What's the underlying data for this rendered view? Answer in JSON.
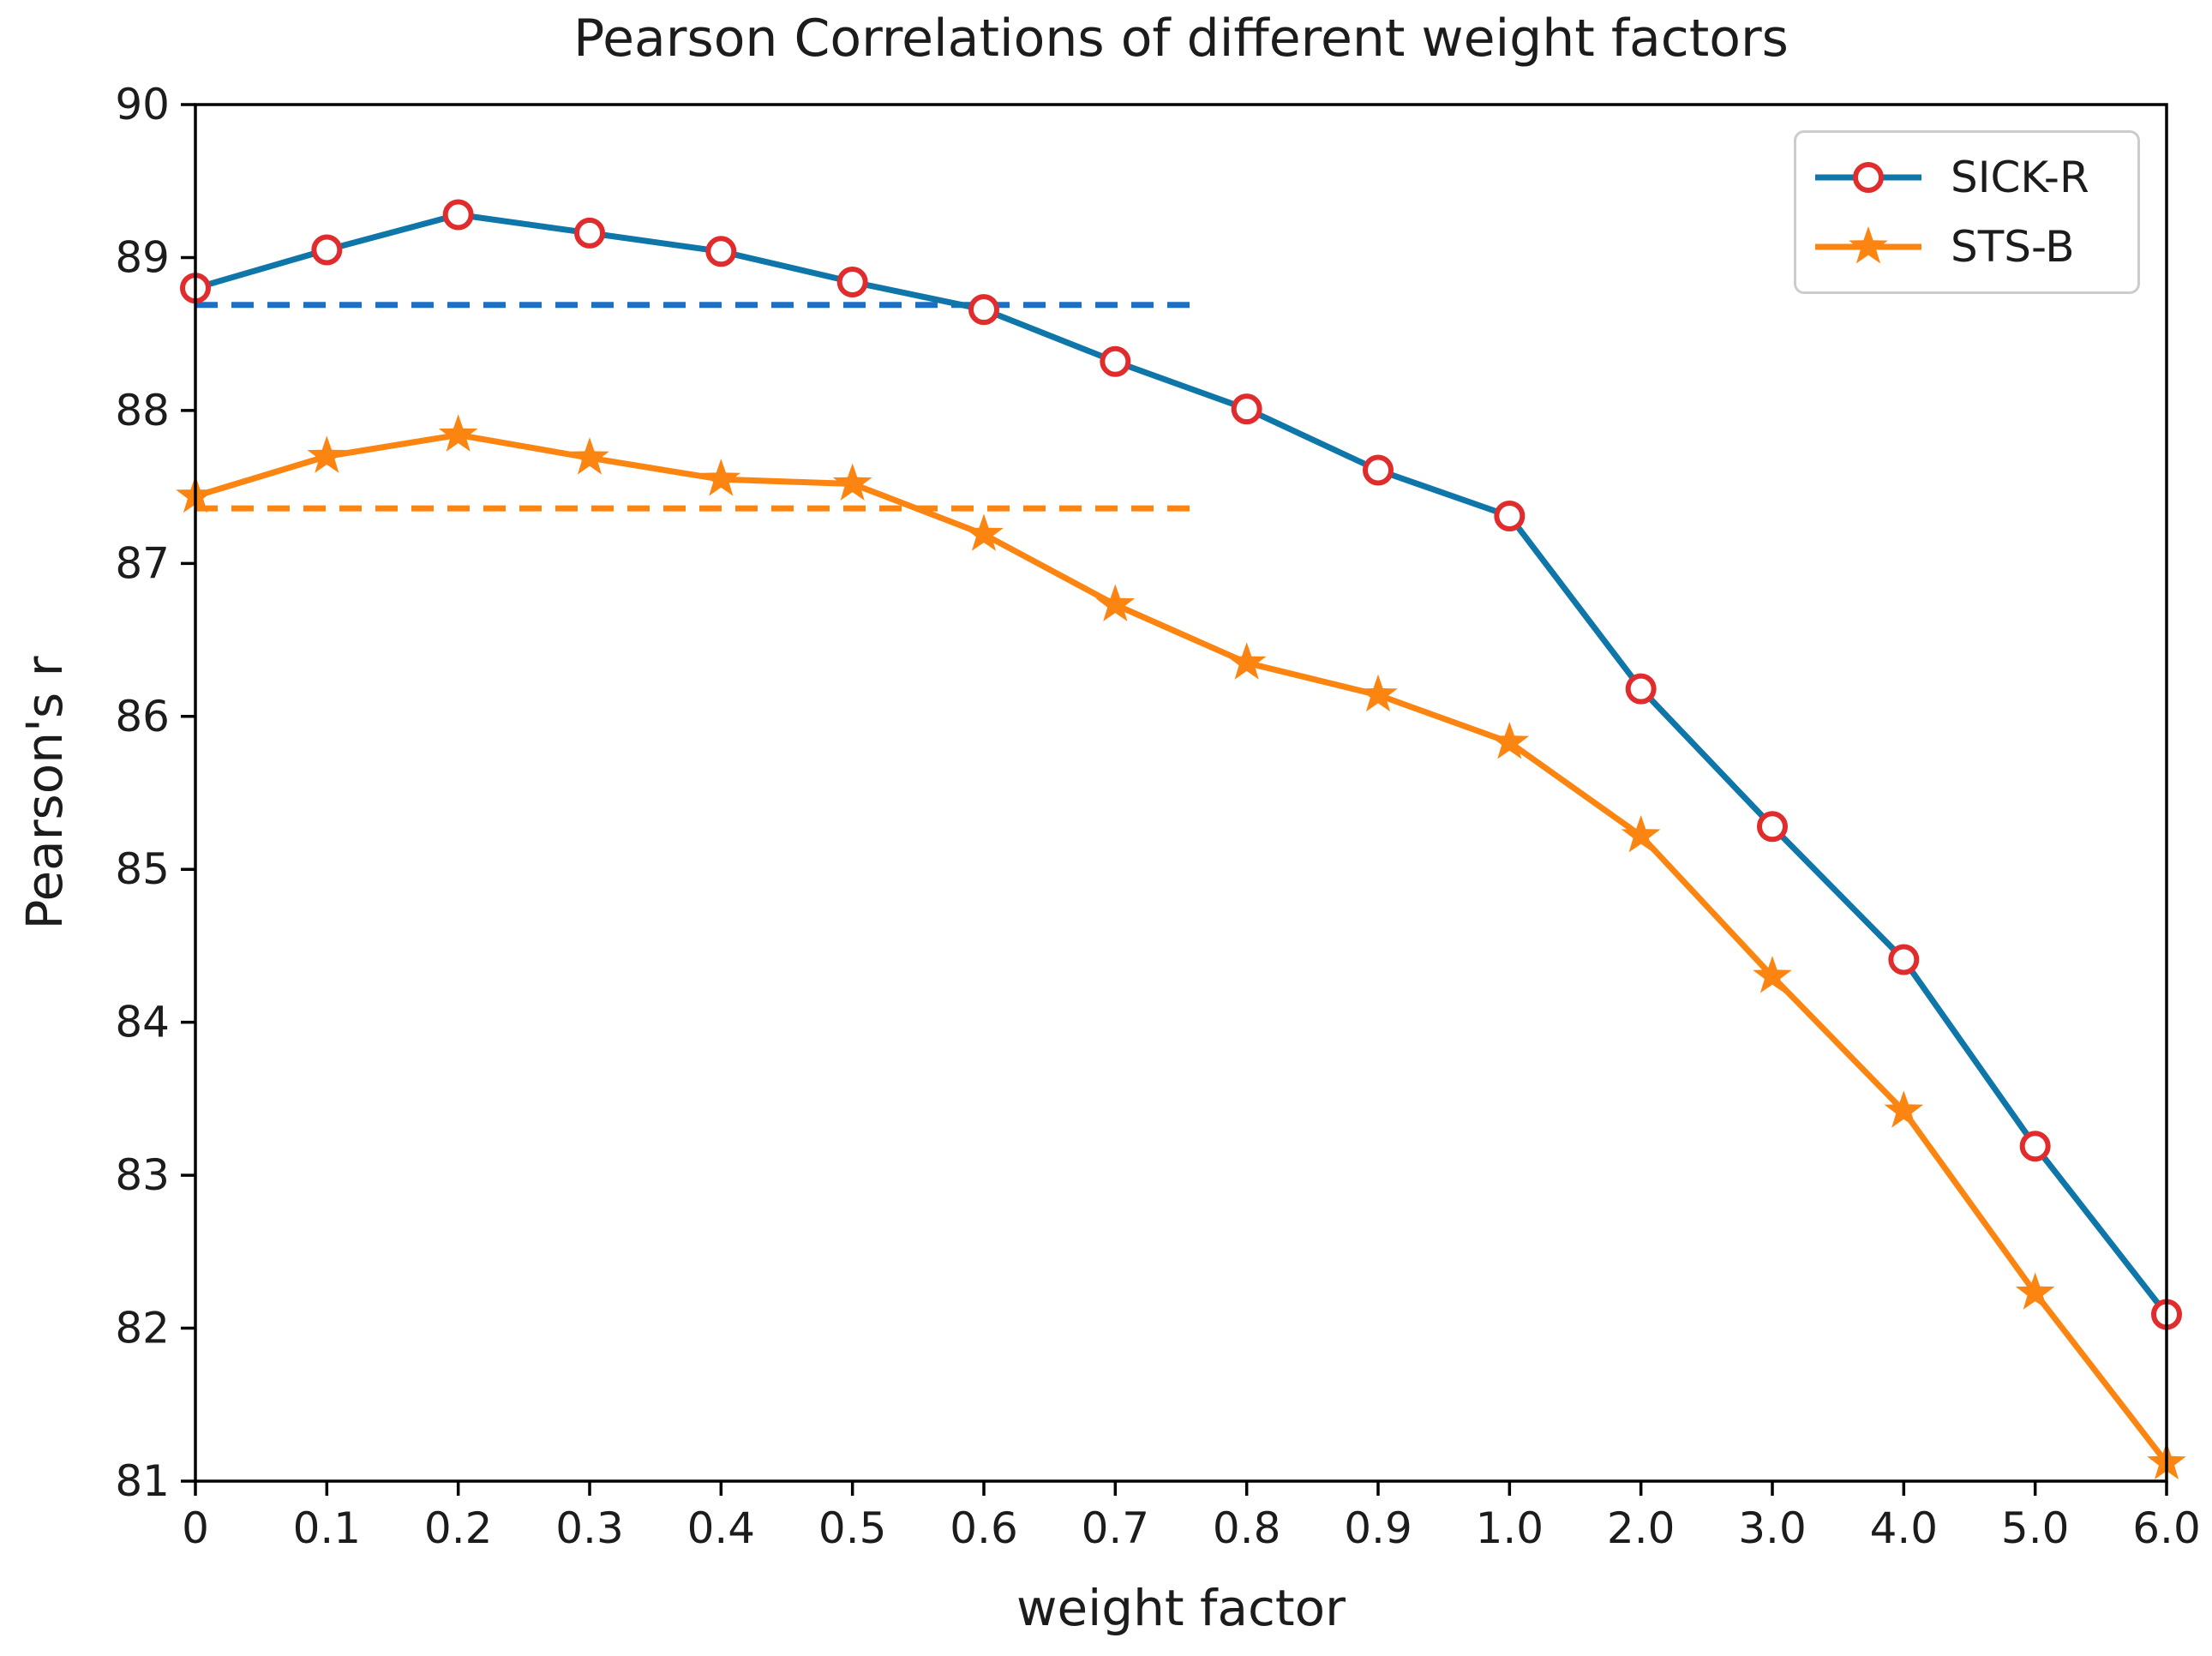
{
  "chart_data": {
    "type": "line",
    "title": "Pearson Correlations of different weight factors",
    "xlabel": "weight factor",
    "ylabel": "Pearson's r",
    "categories": [
      "0",
      "0.1",
      "0.2",
      "0.3",
      "0.4",
      "0.5",
      "0.6",
      "0.7",
      "0.8",
      "0.9",
      "1.0",
      "2.0",
      "3.0",
      "4.0",
      "5.0",
      "6.0"
    ],
    "ylim": [
      81,
      90
    ],
    "yticks": [
      90,
      89,
      88,
      87,
      86,
      85,
      84,
      83,
      82,
      81
    ],
    "grid": false,
    "legend_position": "upper right",
    "series": [
      {
        "name": "SICK-R",
        "line_color": "#0f76aa",
        "line_style": "solid",
        "marker": "open-circle",
        "marker_edge_color": "#e02c2c",
        "marker_fill": "#ffffff",
        "values": [
          88.8,
          89.05,
          89.28,
          89.16,
          89.04,
          88.84,
          88.66,
          88.32,
          88.01,
          87.61,
          87.31,
          86.18,
          85.28,
          84.41,
          83.19,
          82.09
        ]
      },
      {
        "name": "STS-B",
        "line_color": "#fb8510",
        "line_style": "solid",
        "marker": "star",
        "marker_fill": "#fb8510",
        "values": [
          87.44,
          87.7,
          87.84,
          87.69,
          87.55,
          87.52,
          87.19,
          86.73,
          86.35,
          86.14,
          85.83,
          85.22,
          84.3,
          83.42,
          82.23,
          81.12
        ]
      }
    ],
    "baselines": [
      {
        "label": "SICK-R baseline",
        "value": 88.69,
        "color": "#1b6fc4",
        "line_style": "dashed",
        "x_start_fraction": 0,
        "x_end_fraction": 0.51
      },
      {
        "label": "STS-B baseline",
        "value": 87.36,
        "color": "#fb8510",
        "line_style": "dashed",
        "x_start_fraction": 0,
        "x_end_fraction": 0.51
      }
    ]
  },
  "colors": {
    "background": "#ffffff",
    "spine": "#000000",
    "text": "#1c1c1c",
    "legend_border": "#cccccc"
  }
}
